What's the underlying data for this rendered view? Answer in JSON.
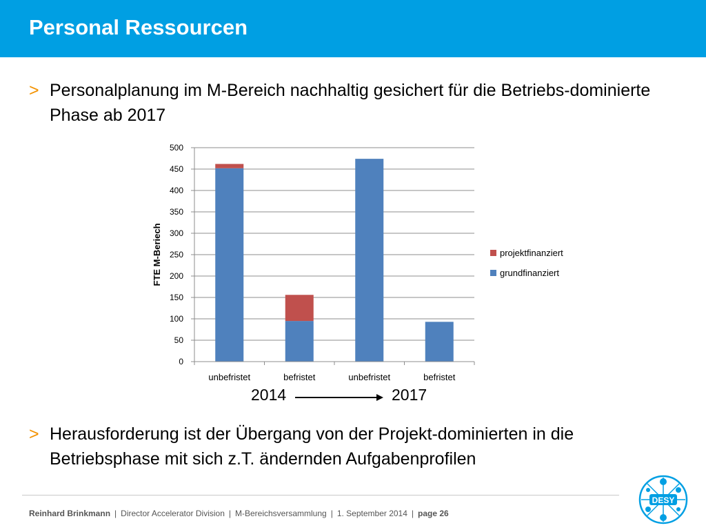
{
  "header": {
    "title": "Personal Ressourcen"
  },
  "bullets": [
    {
      "marker": ">",
      "text": "Personalplanung im M-Bereich nachhaltig gesichert für die Betriebs-dominierte Phase ab 2017"
    },
    {
      "marker": ">",
      "text": "Herausforderung ist der Übergang von der Projekt-dominierten in die Betriebsphase mit sich z.T. ändernden Aufgabenprofilen"
    }
  ],
  "years": {
    "from": "2014",
    "to": "2017"
  },
  "colors": {
    "header_bg": "#009fe3",
    "bullet_marker": "#f39200",
    "grundfinanziert": "#4f81bd",
    "projektfinanziert": "#c0504d"
  },
  "chart_data": {
    "type": "bar",
    "stacked": true,
    "categories": [
      "unbefristet",
      "befristet",
      "unbefristet",
      "befristet"
    ],
    "series": [
      {
        "name": "grundfinanziert",
        "color": "#4f81bd",
        "values": [
          452,
          95,
          474,
          93
        ]
      },
      {
        "name": "projektfinanziert",
        "color": "#c0504d",
        "values": [
          10,
          61,
          0,
          0
        ]
      }
    ],
    "ylabel": "FTE M-Beriech",
    "xlabel": "",
    "ylim": [
      0,
      500
    ],
    "yticks": [
      0,
      50,
      100,
      150,
      200,
      250,
      300,
      350,
      400,
      450,
      500
    ],
    "grid": true,
    "legend_position": "right"
  },
  "footer": {
    "author": "Reinhard Brinkmann",
    "role": "Director Accelerator Division",
    "event": "M-Bereichsversammlung",
    "date": "1. September 2014",
    "page": "page 26"
  },
  "logo": {
    "text": "DESY",
    "icon": "desy-logo-icon"
  }
}
